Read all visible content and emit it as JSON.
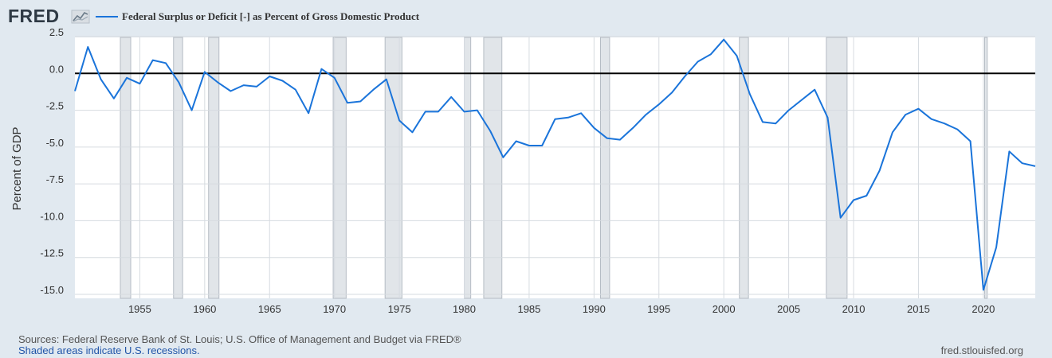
{
  "header": {
    "logo_text": "FRED",
    "logo_icon": "sparkline-graph-icon"
  },
  "footer": {
    "sources": "Sources: Federal Reserve Bank of St. Louis; U.S. Office of Management and Budget via FRED®",
    "recessions_note": "Shaded areas indicate U.S. recessions.",
    "site": "fred.stlouisfed.org"
  },
  "colors": {
    "background": "#e1e9f0",
    "plot_background": "#ffffff",
    "line": "#1a74da",
    "recession": "#e1e5e9",
    "zero_line": "#000000"
  },
  "chart_data": {
    "type": "line",
    "title": "",
    "ylabel": "Percent of GDP",
    "xlabel": "",
    "xlim": [
      1950,
      2024
    ],
    "ylim": [
      -15,
      2.5
    ],
    "yticks": [
      2.5,
      0,
      -2.5,
      -5,
      -7.5,
      -10,
      -12.5,
      -15
    ],
    "ytick_labels": [
      "2.5",
      "0.0",
      "-2.5",
      "-5.0",
      "-7.5",
      "-10.0",
      "-12.5",
      "-15.0"
    ],
    "xticks": [
      1955,
      1960,
      1965,
      1970,
      1975,
      1980,
      1985,
      1990,
      1995,
      2000,
      2005,
      2010,
      2015,
      2020
    ],
    "grid": true,
    "legend_position": "top-left",
    "reference_line": 0,
    "series": [
      {
        "name": "Federal Surplus or Deficit [-] as Percent of Gross Domestic Product",
        "x": [
          1950,
          1951,
          1952,
          1953,
          1954,
          1955,
          1956,
          1957,
          1958,
          1959,
          1960,
          1961,
          1962,
          1963,
          1964,
          1965,
          1966,
          1967,
          1968,
          1969,
          1970,
          1971,
          1972,
          1973,
          1974,
          1975,
          1976,
          1977,
          1978,
          1979,
          1980,
          1981,
          1982,
          1983,
          1984,
          1985,
          1986,
          1987,
          1988,
          1989,
          1990,
          1991,
          1992,
          1993,
          1994,
          1995,
          1996,
          1997,
          1998,
          1999,
          2000,
          2001,
          2002,
          2003,
          2004,
          2005,
          2006,
          2007,
          2008,
          2009,
          2010,
          2011,
          2012,
          2013,
          2014,
          2015,
          2016,
          2017,
          2018,
          2019,
          2020,
          2021,
          2022,
          2023,
          2024
        ],
        "y": [
          -1.2,
          1.8,
          -0.4,
          -1.7,
          -0.3,
          -0.7,
          0.9,
          0.7,
          -0.6,
          -2.5,
          0.1,
          -0.6,
          -1.2,
          -0.8,
          -0.9,
          -0.2,
          -0.5,
          -1.1,
          -2.7,
          0.3,
          -0.3,
          -2.0,
          -1.9,
          -1.1,
          -0.4,
          -3.2,
          -4.0,
          -2.6,
          -2.6,
          -1.6,
          -2.6,
          -2.5,
          -3.9,
          -5.7,
          -4.6,
          -4.9,
          -4.9,
          -3.1,
          -3.0,
          -2.7,
          -3.7,
          -4.4,
          -4.5,
          -3.7,
          -2.8,
          -2.1,
          -1.3,
          -0.2,
          0.8,
          1.3,
          2.3,
          1.2,
          -1.4,
          -3.3,
          -3.4,
          -2.5,
          -1.8,
          -1.1,
          -3.0,
          -9.8,
          -8.6,
          -8.3,
          -6.6,
          -4.0,
          -2.8,
          -2.4,
          -3.1,
          -3.4,
          -3.8,
          -4.6,
          -14.7,
          -11.8,
          -5.3,
          -6.1,
          -6.3
        ]
      }
    ],
    "recessions": [
      [
        1953.5,
        1954.3
      ],
      [
        1957.6,
        1958.3
      ],
      [
        1960.3,
        1961.1
      ],
      [
        1969.9,
        1970.9
      ],
      [
        1973.9,
        1975.2
      ],
      [
        1980.0,
        1980.5
      ],
      [
        1981.5,
        1982.9
      ],
      [
        1990.5,
        1991.2
      ],
      [
        2001.2,
        2001.9
      ],
      [
        2007.9,
        2009.5
      ],
      [
        2020.1,
        2020.3
      ]
    ]
  }
}
